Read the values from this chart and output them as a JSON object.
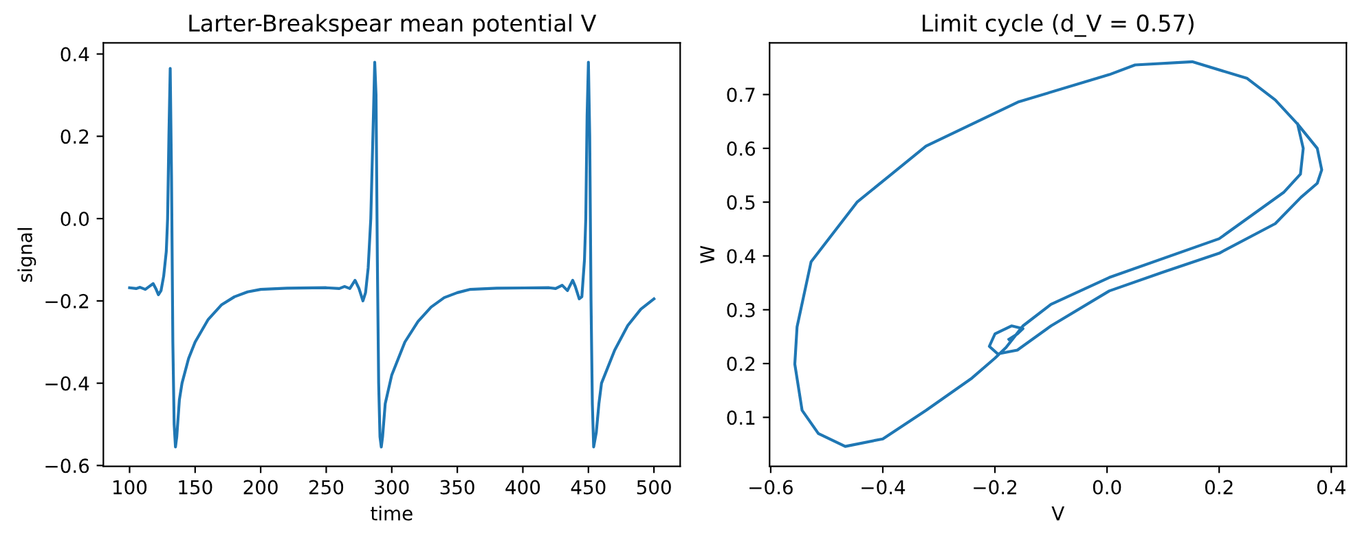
{
  "chart_data": [
    {
      "type": "line",
      "title": "Larter-Breakspear mean potential V",
      "xlabel": "time",
      "ylabel": "signal",
      "xlim": [
        80,
        520
      ],
      "ylim": [
        -0.602,
        0.427
      ],
      "xticks": [
        100,
        150,
        200,
        250,
        300,
        350,
        400,
        450,
        500
      ],
      "yticks": [
        {
          "value": -0.6,
          "label": "−0.6"
        },
        {
          "value": -0.4,
          "label": "−0.4"
        },
        {
          "value": -0.2,
          "label": "−0.2"
        },
        {
          "value": 0.0,
          "label": "0.0"
        },
        {
          "value": 0.2,
          "label": "0.2"
        },
        {
          "value": 0.4,
          "label": "0.4"
        }
      ],
      "grid": false,
      "legend": false,
      "series": [
        {
          "color": "#1f77b4",
          "x": [
            100,
            105,
            108,
            112,
            115,
            118,
            120,
            122,
            124,
            126,
            128,
            129,
            130,
            131,
            132,
            133,
            134,
            135,
            136,
            138,
            140,
            145,
            150,
            160,
            170,
            180,
            190,
            200,
            220,
            250,
            260,
            264,
            268,
            272,
            275,
            278,
            280,
            282,
            284,
            286,
            287,
            288,
            289,
            290,
            291,
            292,
            293,
            295,
            300,
            310,
            320,
            330,
            340,
            350,
            360,
            380,
            420,
            425,
            430,
            434,
            438,
            440,
            443,
            445,
            447,
            448,
            449,
            450,
            451,
            452,
            453,
            454,
            456,
            458,
            460,
            470,
            480,
            490,
            500
          ],
          "values": [
            -0.168,
            -0.17,
            -0.167,
            -0.172,
            -0.165,
            -0.158,
            -0.17,
            -0.185,
            -0.175,
            -0.14,
            -0.08,
            0.0,
            0.2,
            0.365,
            0.1,
            -0.3,
            -0.5,
            -0.555,
            -0.53,
            -0.44,
            -0.4,
            -0.34,
            -0.3,
            -0.245,
            -0.21,
            -0.19,
            -0.178,
            -0.172,
            -0.169,
            -0.168,
            -0.17,
            -0.165,
            -0.17,
            -0.15,
            -0.17,
            -0.2,
            -0.18,
            -0.12,
            0.0,
            0.25,
            0.38,
            0.3,
            -0.1,
            -0.4,
            -0.53,
            -0.555,
            -0.53,
            -0.45,
            -0.38,
            -0.3,
            -0.25,
            -0.215,
            -0.192,
            -0.18,
            -0.172,
            -0.169,
            -0.168,
            -0.17,
            -0.162,
            -0.175,
            -0.15,
            -0.165,
            -0.195,
            -0.19,
            -0.1,
            0.0,
            0.25,
            0.38,
            0.2,
            -0.2,
            -0.45,
            -0.555,
            -0.52,
            -0.45,
            -0.4,
            -0.32,
            -0.26,
            -0.22,
            -0.195
          ]
        }
      ]
    },
    {
      "type": "line",
      "title": "Limit cycle (d_V = 0.57)",
      "xlabel": "V",
      "ylabel": "W",
      "xlim": [
        -0.602,
        0.427
      ],
      "ylim": [
        0.009,
        0.796
      ],
      "xticks": [
        {
          "value": -0.6,
          "label": "−0.6"
        },
        {
          "value": -0.4,
          "label": "−0.4"
        },
        {
          "value": -0.2,
          "label": "−0.2"
        },
        {
          "value": 0.0,
          "label": "0.0"
        },
        {
          "value": 0.2,
          "label": "0.2"
        },
        {
          "value": 0.4,
          "label": "0.4"
        }
      ],
      "yticks": [
        0.1,
        0.2,
        0.3,
        0.4,
        0.5,
        0.6,
        0.7
      ],
      "grid": false,
      "legend": false,
      "series": [
        {
          "color": "#1f77b4",
          "x": [
            -0.175,
            -0.16,
            -0.15,
            -0.17,
            -0.2,
            -0.21,
            -0.195,
            -0.16,
            -0.1,
            0.004,
            0.1,
            0.2,
            0.3,
            0.346,
            0.375,
            0.383,
            0.375,
            0.34,
            0.3,
            0.25,
            0.152,
            0.05,
            0.004,
            -0.159,
            -0.323,
            -0.446,
            -0.528,
            -0.553,
            -0.557,
            -0.544,
            -0.515,
            -0.467,
            -0.4,
            -0.323,
            -0.241,
            -0.2,
            -0.18,
            -0.165,
            -0.15,
            -0.1,
            0.004,
            0.2,
            0.315,
            0.345,
            0.35,
            0.34
          ],
          "values": [
            0.245,
            0.255,
            0.265,
            0.27,
            0.255,
            0.232,
            0.218,
            0.225,
            0.27,
            0.335,
            0.37,
            0.405,
            0.46,
            0.509,
            0.535,
            0.56,
            0.6,
            0.645,
            0.69,
            0.73,
            0.761,
            0.755,
            0.737,
            0.686,
            0.604,
            0.5,
            0.389,
            0.268,
            0.199,
            0.113,
            0.07,
            0.046,
            0.06,
            0.113,
            0.173,
            0.21,
            0.23,
            0.25,
            0.27,
            0.31,
            0.36,
            0.432,
            0.518,
            0.552,
            0.6,
            0.645
          ]
        }
      ]
    }
  ]
}
